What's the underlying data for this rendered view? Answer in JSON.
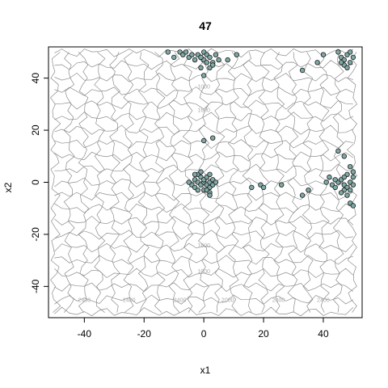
{
  "chart_data": {
    "type": "scatter",
    "title": "47",
    "xlabel": "x1",
    "ylabel": "x2",
    "xlim": [
      -52,
      53
    ],
    "ylim": [
      -52,
      52
    ],
    "xticks": [
      -40,
      -20,
      0,
      20,
      40
    ],
    "yticks": [
      -40,
      -20,
      0,
      20,
      40
    ],
    "xtick_labels": [
      "-40",
      "-20",
      "0",
      "20",
      "40"
    ],
    "ytick_labels": [
      "-40",
      "-20",
      "0",
      "20",
      "40"
    ],
    "grid": false,
    "background": "contour",
    "contour_labels": [
      "1000",
      "1600",
      "2000",
      "2400"
    ],
    "point_color": "#7fa9a6",
    "point_edge": "#1a1a1a",
    "contour_color": "#8c8c8c",
    "points": [
      [
        -12,
        50
      ],
      [
        -10,
        48
      ],
      [
        -8,
        50
      ],
      [
        -7,
        49
      ],
      [
        -6,
        50
      ],
      [
        -5,
        48
      ],
      [
        -4,
        49
      ],
      [
        -3,
        47
      ],
      [
        -2,
        49
      ],
      [
        -1,
        48
      ],
      [
        0,
        50
      ],
      [
        0,
        47
      ],
      [
        1,
        49
      ],
      [
        1,
        46
      ],
      [
        2,
        48
      ],
      [
        2,
        44
      ],
      [
        3,
        46
      ],
      [
        4,
        49
      ],
      [
        5,
        47
      ],
      [
        -1,
        44
      ],
      [
        0,
        41
      ],
      [
        8,
        47
      ],
      [
        11,
        49
      ],
      [
        -1,
        48
      ],
      [
        3,
        45
      ],
      [
        33,
        43
      ],
      [
        38,
        46
      ],
      [
        40,
        49
      ],
      [
        45,
        50
      ],
      [
        46,
        48
      ],
      [
        47,
        47
      ],
      [
        48,
        49
      ],
      [
        49,
        46
      ],
      [
        50,
        48
      ],
      [
        49,
        50
      ],
      [
        47,
        45
      ],
      [
        48,
        44
      ],
      [
        46,
        46
      ],
      [
        -4,
        -1
      ],
      [
        -3,
        1
      ],
      [
        -3,
        -2
      ],
      [
        -2,
        0
      ],
      [
        -2,
        3
      ],
      [
        -1,
        -1
      ],
      [
        -1,
        2
      ],
      [
        0,
        0
      ],
      [
        0,
        -3
      ],
      [
        0,
        1
      ],
      [
        1,
        -1
      ],
      [
        1,
        2
      ],
      [
        2,
        0
      ],
      [
        2,
        -2
      ],
      [
        3,
        1
      ],
      [
        3,
        -1
      ],
      [
        -2,
        -3
      ],
      [
        -1,
        4
      ],
      [
        1,
        -3
      ],
      [
        2,
        3
      ],
      [
        -5,
        0
      ],
      [
        4,
        0
      ],
      [
        -3,
        3
      ],
      [
        2,
        -4
      ],
      [
        0,
        16
      ],
      [
        3,
        17
      ],
      [
        2,
        -5
      ],
      [
        16,
        -2
      ],
      [
        19,
        -1
      ],
      [
        20,
        -2
      ],
      [
        26,
        -1
      ],
      [
        33,
        -5
      ],
      [
        35,
        -3
      ],
      [
        41,
        0
      ],
      [
        42,
        2
      ],
      [
        43,
        -1
      ],
      [
        44,
        -2
      ],
      [
        45,
        0
      ],
      [
        46,
        1
      ],
      [
        47,
        -1
      ],
      [
        48,
        -2
      ],
      [
        49,
        0
      ],
      [
        50,
        -1
      ],
      [
        45,
        12
      ],
      [
        47,
        10
      ],
      [
        49,
        6
      ],
      [
        50,
        4
      ],
      [
        49,
        -8
      ],
      [
        50,
        -9
      ],
      [
        48,
        -5
      ],
      [
        47,
        -3
      ],
      [
        48,
        3
      ],
      [
        50,
        2
      ],
      [
        46,
        -4
      ],
      [
        44,
        1
      ],
      [
        49,
        -3
      ],
      [
        47,
        2
      ]
    ]
  }
}
